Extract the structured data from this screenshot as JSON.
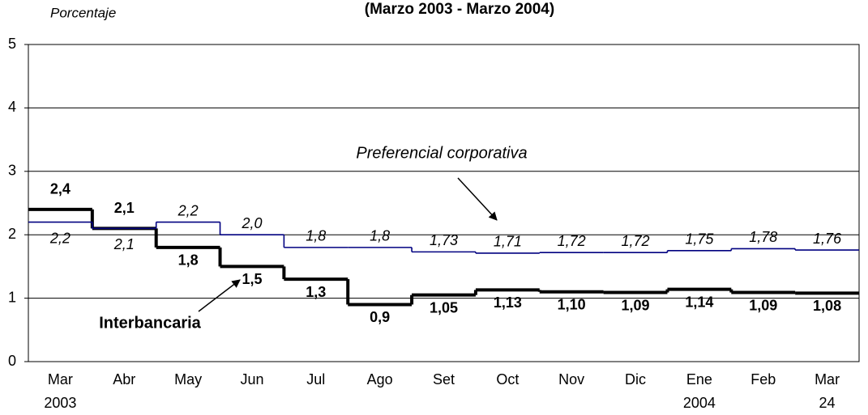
{
  "chart_data": {
    "type": "step-line",
    "title": "(Marzo 2003 - Marzo 2004)",
    "y_label": "Porcentaje",
    "categories": [
      "Mar",
      "Abr",
      "May",
      "Jun",
      "Jul",
      "Ago",
      "Set",
      "Oct",
      "Nov",
      "Dic",
      "Ene",
      "Feb",
      "Mar"
    ],
    "category_sublabels": [
      "2003",
      null,
      null,
      null,
      null,
      null,
      null,
      null,
      null,
      null,
      "2004",
      null,
      "24"
    ],
    "ylim": [
      0,
      5
    ],
    "yticks": [
      0,
      1,
      2,
      3,
      4,
      5
    ],
    "grid": true,
    "series": [
      {
        "name": "Interbancaria",
        "color": "#000000",
        "values": [
          2.4,
          2.1,
          1.8,
          1.5,
          1.3,
          0.9,
          1.05,
          1.13,
          1.1,
          1.09,
          1.14,
          1.09,
          1.08
        ],
        "value_labels": [
          "2,4",
          "2,1",
          "1,8",
          "1,5",
          "1,3",
          "0,9",
          "1,05",
          "1,13",
          "1,10",
          "1,09",
          "1,14",
          "1,09",
          "1,08"
        ]
      },
      {
        "name": "Preferencial corporativa",
        "color": "#000080",
        "values": [
          2.2,
          2.1,
          2.2,
          2.0,
          1.8,
          1.8,
          1.73,
          1.71,
          1.72,
          1.72,
          1.75,
          1.78,
          1.76
        ],
        "value_labels": [
          "2,2",
          "2,1",
          "2,2",
          "2,0",
          "1,8",
          "1,8",
          "1,73",
          "1,71",
          "1,72",
          "1,72",
          "1,75",
          "1,78",
          "1,76"
        ]
      }
    ]
  }
}
